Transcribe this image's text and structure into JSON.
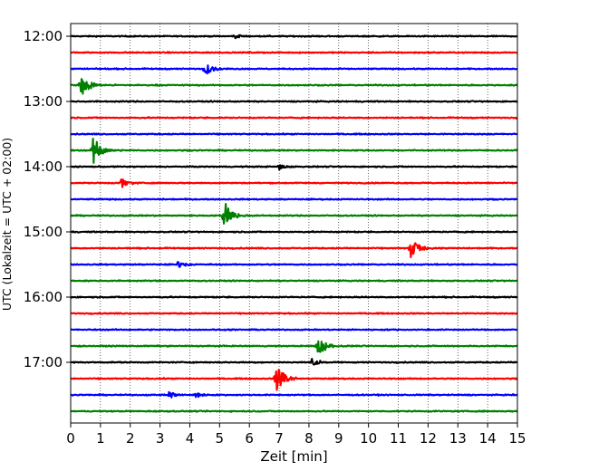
{
  "chart_data": {
    "type": "line",
    "title": "",
    "xlabel": "Zeit  [min]",
    "ylabel": "UTC (Lokalzeit = UTC + 02:00)",
    "xlim": [
      0,
      15
    ],
    "x_ticks": [
      0,
      1,
      2,
      3,
      4,
      5,
      6,
      7,
      8,
      9,
      10,
      11,
      12,
      13,
      14,
      15
    ],
    "x_tick_labels": [
      "0",
      "1",
      "2",
      "3",
      "4",
      "5",
      "6",
      "7",
      "8",
      "9",
      "10",
      "11",
      "12",
      "13",
      "14",
      "15"
    ],
    "y_tick_labels": [
      "12:00",
      "13:00",
      "14:00",
      "15:00",
      "16:00",
      "17:00"
    ],
    "vertical_grid": "dotted",
    "trace_interval_minutes": 15,
    "color_cycle": [
      "#000000",
      "#ff0000",
      "#0000ff",
      "#008000"
    ],
    "series": [
      {
        "start": "12:00",
        "events": [
          {
            "time_min": 5.5,
            "amplitude": 0.25
          }
        ]
      },
      {
        "start": "12:15",
        "events": []
      },
      {
        "start": "12:30",
        "events": [
          {
            "time_min": 4.5,
            "amplitude": 0.7
          }
        ]
      },
      {
        "start": "12:45",
        "events": [
          {
            "time_min": 0.35,
            "amplitude": 1.35
          }
        ]
      },
      {
        "start": "13:00",
        "events": []
      },
      {
        "start": "13:15",
        "events": []
      },
      {
        "start": "13:30",
        "events": []
      },
      {
        "start": "13:45",
        "events": [
          {
            "time_min": 0.75,
            "amplitude": 1.5
          }
        ]
      },
      {
        "start": "14:00",
        "events": [
          {
            "time_min": 7.0,
            "amplitude": 0.3
          }
        ]
      },
      {
        "start": "14:15",
        "events": [
          {
            "time_min": 1.7,
            "amplitude": 0.55
          }
        ]
      },
      {
        "start": "14:30",
        "events": []
      },
      {
        "start": "14:45",
        "events": [
          {
            "time_min": 5.15,
            "amplitude": 1.6
          }
        ]
      },
      {
        "start": "15:00",
        "events": []
      },
      {
        "start": "15:15",
        "events": [
          {
            "time_min": 11.4,
            "amplitude": 1.3
          }
        ]
      },
      {
        "start": "15:30",
        "events": [
          {
            "time_min": 3.6,
            "amplitude": 0.35
          }
        ]
      },
      {
        "start": "15:45",
        "events": []
      },
      {
        "start": "16:00",
        "events": []
      },
      {
        "start": "16:15",
        "events": []
      },
      {
        "start": "16:30",
        "events": []
      },
      {
        "start": "16:45",
        "events": [
          {
            "time_min": 8.3,
            "amplitude": 1.2
          }
        ]
      },
      {
        "start": "17:00",
        "events": [
          {
            "time_min": 8.1,
            "amplitude": 0.4
          }
        ]
      },
      {
        "start": "17:15",
        "events": [
          {
            "time_min": 6.9,
            "amplitude": 1.7
          }
        ]
      },
      {
        "start": "17:30",
        "events": [
          {
            "time_min": 3.3,
            "amplitude": 0.35
          },
          {
            "time_min": 4.2,
            "amplitude": 0.3
          }
        ]
      },
      {
        "start": "17:45",
        "events": []
      }
    ]
  }
}
